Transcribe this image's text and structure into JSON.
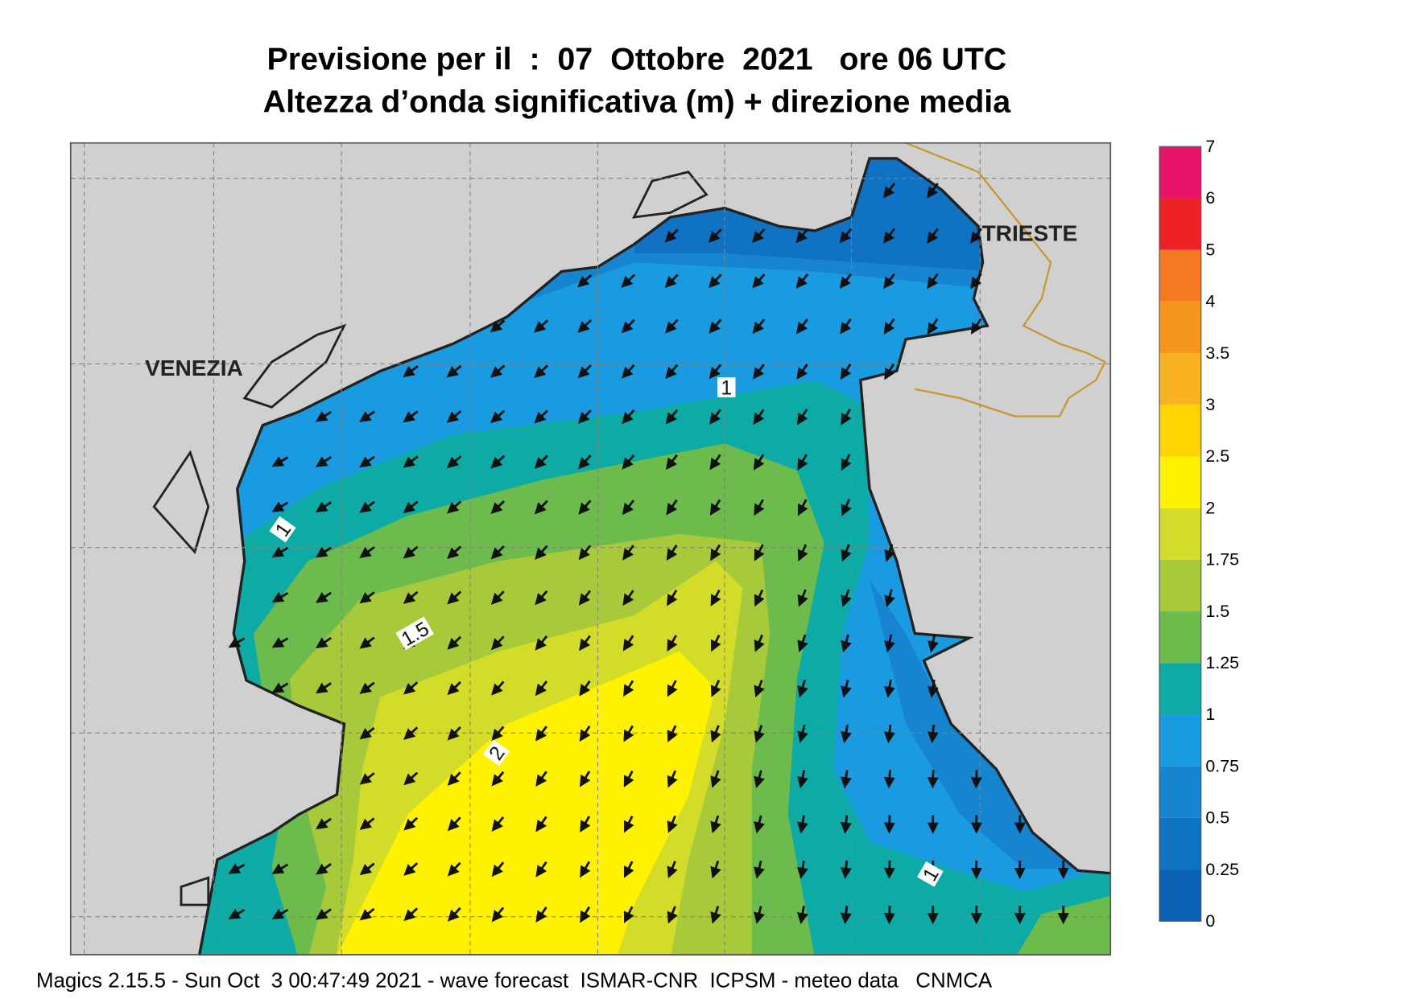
{
  "header": {
    "title": "Previsione per il  :  07  Ottobre  2021   ore 06 UTC",
    "subtitle": "Altezza d’onda significativa (m) + direzione media"
  },
  "map": {
    "places": [
      "VENEZIA",
      "TRIESTE"
    ],
    "contour_labels": [
      "1",
      "1",
      "1.5",
      "2",
      "1"
    ]
  },
  "colorbar": {
    "levels": [
      0,
      0.25,
      0.5,
      0.75,
      1,
      1.25,
      1.5,
      1.75,
      2,
      2.5,
      3,
      3.5,
      4,
      5,
      6,
      7
    ],
    "colors": [
      "#0a60b4",
      "#0f72c3",
      "#1784d0",
      "#1a9ae0",
      "#0eaaa5",
      "#6cbb4c",
      "#a8c93a",
      "#d4dc2a",
      "#fff200",
      "#ffd400",
      "#f9b320",
      "#f7961d",
      "#f47a22",
      "#ec2227",
      "#e8146b"
    ]
  },
  "footer": "Magics 2.15.5 - Sun Oct  3 00:47:49 2021 - wave forecast  ISMAR-CNR  ICPSM - meteo data   CNMCA"
}
